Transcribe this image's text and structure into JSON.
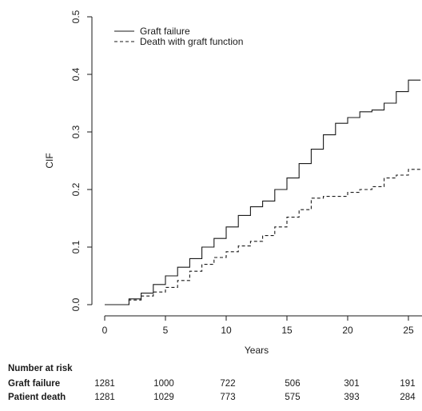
{
  "chart_data": {
    "type": "line",
    "title": "",
    "xlabel": "Years",
    "ylabel": "CIF",
    "xlim": [
      -1,
      26
    ],
    "ylim": [
      0,
      0.5
    ],
    "x_ticks": [
      0,
      5,
      10,
      15,
      20,
      25
    ],
    "y_ticks": [
      0.0,
      0.1,
      0.2,
      0.3,
      0.4,
      0.5
    ],
    "y_tick_labels": [
      "0.0",
      "0.1",
      "0.2",
      "0.3",
      "0.4",
      "0.5"
    ],
    "grid": false,
    "legend_position": "top-left",
    "series": [
      {
        "name": "Graft failure",
        "line_style": "solid",
        "step": true,
        "x": [
          0,
          1.2,
          2,
          3,
          4,
          5,
          6,
          7,
          8,
          9,
          10,
          11,
          12,
          13,
          14,
          15,
          16,
          17,
          18,
          19,
          20,
          21,
          22,
          23,
          24,
          25,
          26
        ],
        "y": [
          0,
          0,
          0.01,
          0.02,
          0.035,
          0.05,
          0.065,
          0.08,
          0.1,
          0.115,
          0.135,
          0.155,
          0.17,
          0.18,
          0.2,
          0.22,
          0.245,
          0.27,
          0.295,
          0.315,
          0.325,
          0.335,
          0.338,
          0.35,
          0.37,
          0.39,
          0.39
        ]
      },
      {
        "name": "Death with graft function",
        "line_style": "dashed",
        "step": true,
        "x": [
          0,
          1.2,
          2,
          3,
          4,
          5,
          6,
          7,
          8,
          9,
          10,
          11,
          12,
          13,
          14,
          15,
          16,
          17,
          18,
          19,
          20,
          21,
          22,
          23,
          24,
          25,
          26
        ],
        "y": [
          0,
          0,
          0.008,
          0.015,
          0.022,
          0.03,
          0.042,
          0.058,
          0.07,
          0.082,
          0.092,
          0.102,
          0.11,
          0.12,
          0.135,
          0.152,
          0.165,
          0.185,
          0.188,
          0.188,
          0.195,
          0.2,
          0.205,
          0.22,
          0.225,
          0.235,
          0.235
        ]
      }
    ],
    "risk_table": {
      "title": "Number at risk",
      "times": [
        0,
        5,
        10,
        15,
        20,
        25
      ],
      "rows": [
        {
          "label": "Graft failure",
          "values": [
            "1281",
            "1000",
            "722",
            "506",
            "301",
            "191"
          ]
        },
        {
          "label": "Patient death",
          "values": [
            "1281",
            "1029",
            "773",
            "575",
            "393",
            "284"
          ]
        }
      ]
    }
  }
}
